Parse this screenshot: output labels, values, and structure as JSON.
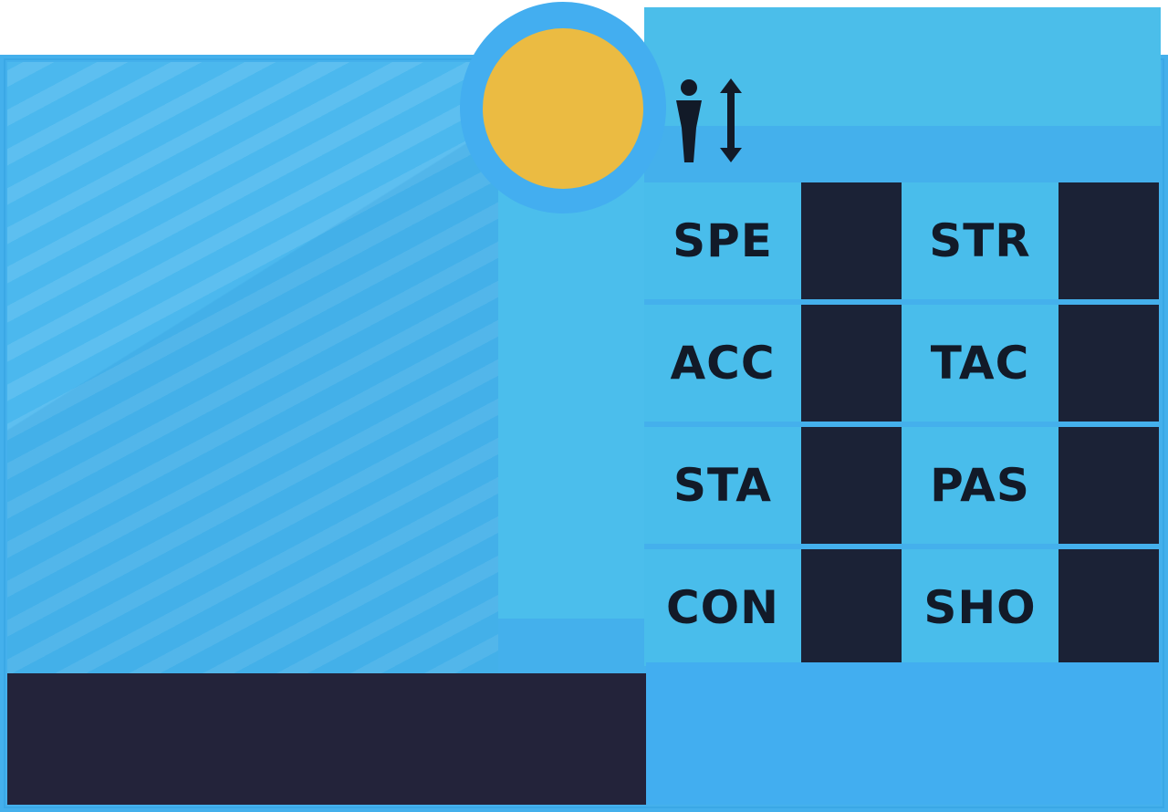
{
  "card": {
    "accent_color": "#44b0ec",
    "badge_color": "#ebbb42",
    "value_box_color": "#1b2236",
    "name_bar_color": "#23233a"
  },
  "header": {
    "height_icon": "person-height-icon"
  },
  "player": {
    "name": ""
  },
  "stats": [
    {
      "label": "SPE",
      "value": ""
    },
    {
      "label": "STR",
      "value": ""
    },
    {
      "label": "ACC",
      "value": ""
    },
    {
      "label": "TAC",
      "value": ""
    },
    {
      "label": "STA",
      "value": ""
    },
    {
      "label": "PAS",
      "value": ""
    },
    {
      "label": "CON",
      "value": ""
    },
    {
      "label": "SHO",
      "value": ""
    }
  ]
}
